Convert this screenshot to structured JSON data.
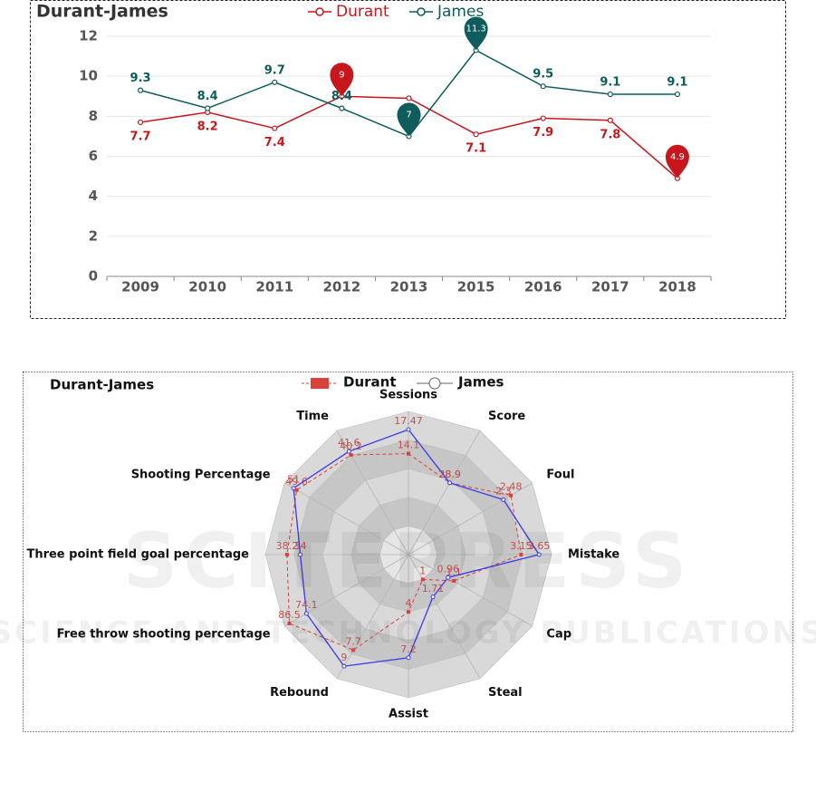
{
  "chart_data": [
    {
      "type": "line",
      "title": "Durant-James",
      "categories": [
        "2009",
        "2010",
        "2011",
        "2012",
        "2013",
        "2015",
        "2016",
        "2017",
        "2018"
      ],
      "series": [
        {
          "name": "Durant",
          "color": "#c8161d",
          "values": [
            7.7,
            8.2,
            7.4,
            9,
            8.9,
            7.1,
            7.9,
            7.8,
            4.9
          ]
        },
        {
          "name": "James",
          "color": "#0e5c5c",
          "values": [
            9.3,
            8.4,
            9.7,
            8.4,
            7,
            11.3,
            9.5,
            9.1,
            9.1
          ]
        }
      ],
      "ylim": [
        0,
        12
      ],
      "yticks": [
        0,
        2,
        4,
        6,
        8,
        10,
        12
      ],
      "grid": true,
      "mark_points": [
        "max",
        "min"
      ]
    },
    {
      "type": "radar",
      "title": "Durant-James",
      "indicators": [
        {
          "name": "Sessions",
          "max": 20
        },
        {
          "name": "Score",
          "max": 50
        },
        {
          "name": "Foul",
          "max": 3
        },
        {
          "name": "Mistake",
          "max": 4
        },
        {
          "name": "Cap",
          "max": 3
        },
        {
          "name": "Steal",
          "max": 5
        },
        {
          "name": "Assist",
          "max": 10
        },
        {
          "name": "Rebound",
          "max": 10
        },
        {
          "name": "Free throw shooting percentage",
          "max": 90
        },
        {
          "name": "Three point field goal percentage",
          "max": 45
        },
        {
          "name": "Shooting Percentage",
          "max": 55
        },
        {
          "name": "Time",
          "max": 50
        }
      ],
      "series": [
        {
          "name": "Durant",
          "color": "#d9413a",
          "values": [
            14.1,
            28.9,
            2.48,
            3.15,
            1.1,
            1,
            4,
            7.7,
            86.5,
            38.2,
            49.6,
            40.2
          ]
        },
        {
          "name": "James",
          "color": "#3a3ae8",
          "values": [
            17.47,
            28.9,
            2.3,
            3.65,
            0.96,
            1.71,
            7.2,
            9,
            74.1,
            34,
            51,
            41.6
          ]
        }
      ],
      "label_color": "#c0504d"
    }
  ],
  "watermark": {
    "line1": "SCITEPRESS",
    "line2": "SCIENCE AND TECHNOLOGY PUBLICATIONS"
  }
}
